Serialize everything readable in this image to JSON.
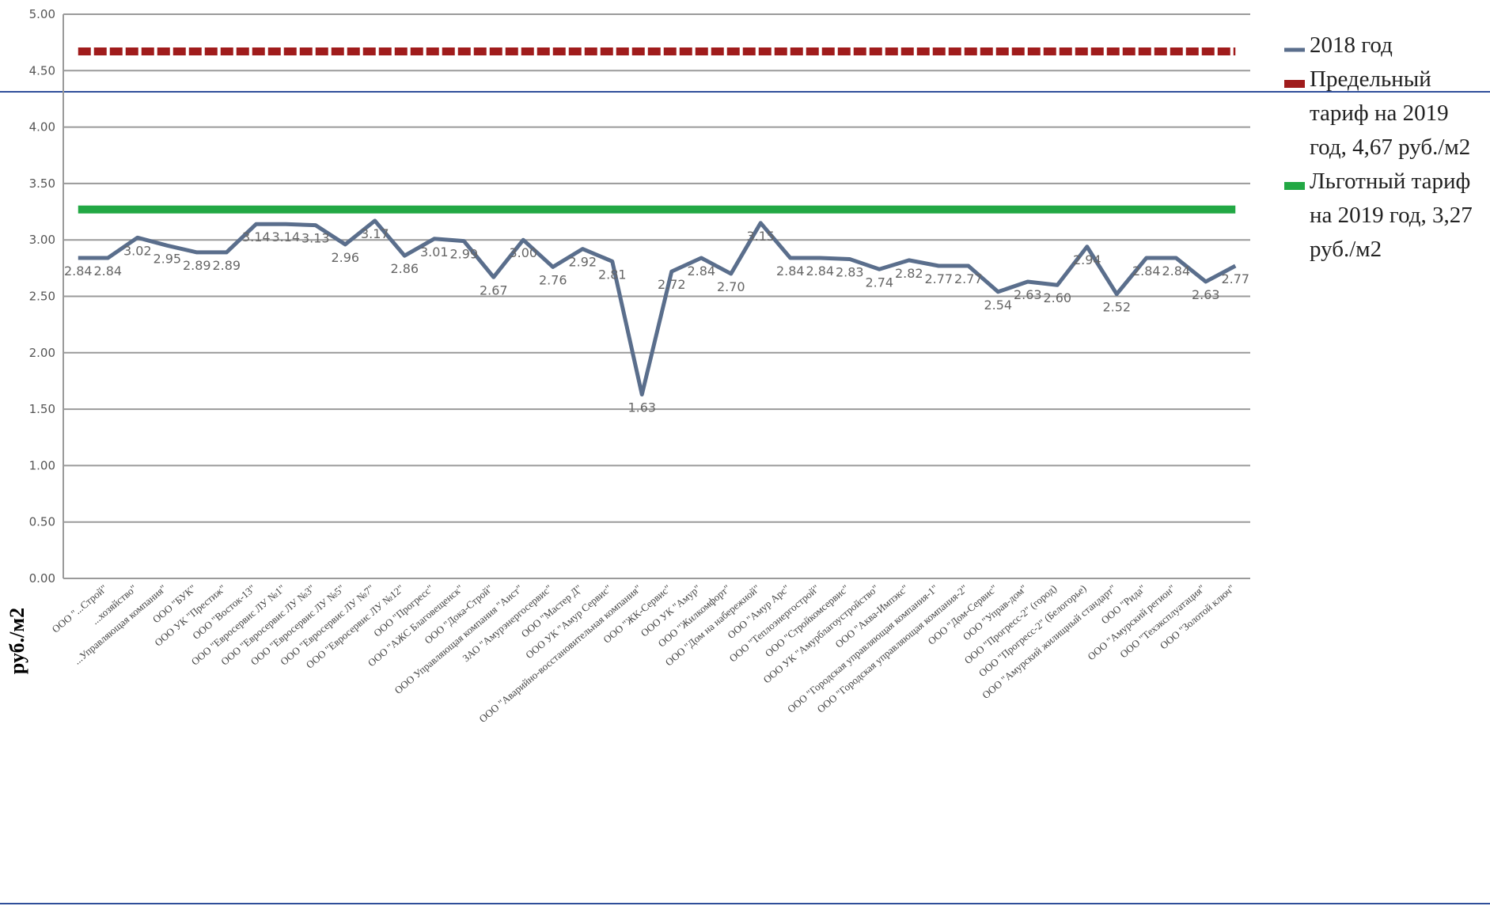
{
  "chart_data": {
    "type": "line",
    "y_label": "руб./м2",
    "categories": [
      null,
      "ООО \"...Строй\"",
      "...хозяйство\"",
      "...Управляющая компания\"",
      "ООО \"БУК\"",
      "ООО УК \"Престиж\"",
      "ООО \"Восток-13\"",
      "ООО \"Евросервис ЛУ №1\"",
      "ООО \"Евросервис ЛУ №3\"",
      "ООО \"Евросервис ЛУ №5\"",
      "ООО \"Евросервис ЛУ №7\"",
      "ООО \"Евросервис ЛУ №12\"",
      "ООО \"Прогресс\"",
      "ООО \"АЖС Благовещенск\"",
      "ООО \"Дока-Строй\"",
      "ООО Управляющая компания \"Аист\"",
      "ЗАО \"Амурэнергосервис\"",
      "ООО \"Мастер Д\"",
      "ООО УК \"Амур Сервис\"",
      "ООО \"Аварийно-восстановительная компания\"",
      "ООО \"ЖК-Сервис\"",
      "ООО УК \"Амур\"",
      "ООО \"Жилкомфорт\"",
      "ООО \"Дом на набережной\"",
      "ООО \"Амур Арс\"",
      "ООО \"Теплоэнергострой\"",
      "ООО \"Стройкомсервис\"",
      "ООО УК \"Амурблагоустройство\"",
      "ООО \"Аква-Импэкс\"",
      "ООО \"Городская управляющая компания-1\"",
      "ООО \"Городская управляющая компания-2\"",
      "ООО \"Дом-Сервис\"",
      "ООО \"Управ-дом\"",
      "ООО \"Прогресс-2\" (город)",
      "ООО \"Прогресс-2\" (Белогорье)",
      "ООО \"Амурский жилищный стандарт\"",
      "ООО \"Рида\"",
      "ООО \"Амурский регион\"",
      "ООО \"Техэксплуатация\"",
      "ООО \"Золотой ключ\""
    ],
    "series": [
      {
        "name": "2018 год",
        "color": "#5a6e8c",
        "values": [
          2.84,
          2.84,
          3.02,
          2.95,
          2.89,
          2.89,
          3.14,
          3.14,
          3.13,
          2.96,
          3.17,
          2.86,
          3.01,
          2.99,
          2.67,
          3.0,
          2.76,
          2.92,
          2.81,
          1.63,
          2.72,
          2.84,
          2.7,
          3.15,
          2.84,
          2.84,
          2.83,
          2.74,
          2.82,
          2.77,
          2.77,
          2.54,
          2.63,
          2.6,
          2.94,
          2.52,
          2.84,
          2.84,
          2.63,
          2.77
        ],
        "value_labels": [
          "2.84",
          "2.84",
          "3.02",
          "2.95",
          "2.89",
          "2.89",
          "3.14",
          "3.14",
          "3.13",
          "2.96",
          "3.17",
          "2.86",
          "3.01",
          "2.99",
          "2.67",
          "3.00",
          "2.76",
          "2.92",
          "2.81",
          "1.63",
          "2.72",
          "2.84",
          "2.70",
          "3.15",
          "2.84",
          "2.84",
          "2.83",
          "2.74",
          "2.82",
          "2.77",
          "2.77",
          "2.54",
          "2.63",
          "2.60",
          "2.94",
          "2.52",
          "2.84",
          "2.84",
          "2.63",
          "2.77"
        ]
      },
      {
        "name": "Предельный тариф на 2019 год, 4,67 руб./м2",
        "color": "#a01c1c",
        "values": [
          4.67,
          4.67,
          4.67,
          4.67,
          4.67,
          4.67,
          4.67,
          4.67,
          4.67,
          4.67,
          4.67,
          4.67,
          4.67,
          4.67,
          4.67,
          4.67,
          4.67,
          4.67,
          4.67,
          4.67,
          4.67,
          4.67,
          4.67,
          4.67,
          4.67,
          4.67,
          4.67,
          4.67,
          4.67,
          4.67,
          4.67,
          4.67,
          4.67,
          4.67,
          4.67,
          4.67,
          4.67,
          4.67,
          4.67,
          4.67
        ]
      },
      {
        "name": "Льготный тариф на 2019 год, 3,27 руб./м2",
        "color": "#22a844",
        "values": [
          3.27,
          3.27,
          3.27,
          3.27,
          3.27,
          3.27,
          3.27,
          3.27,
          3.27,
          3.27,
          3.27,
          3.27,
          3.27,
          3.27,
          3.27,
          3.27,
          3.27,
          3.27,
          3.27,
          3.27,
          3.27,
          3.27,
          3.27,
          3.27,
          3.27,
          3.27,
          3.27,
          3.27,
          3.27,
          3.27,
          3.27,
          3.27,
          3.27,
          3.27,
          3.27,
          3.27,
          3.27,
          3.27,
          3.27,
          3.27
        ]
      }
    ],
    "ylim": [
      0,
      5
    ],
    "yticks": [
      {
        "value": 0,
        "label": "0.00"
      },
      {
        "value": 0.5,
        "label": "0.50"
      },
      {
        "value": 1,
        "label": "1.00"
      },
      {
        "value": 1.5,
        "label": "1.50"
      },
      {
        "value": 2,
        "label": "2.00"
      },
      {
        "value": 2.5,
        "label": "2.50"
      },
      {
        "value": 3,
        "label": "3.00"
      },
      {
        "value": 3.5,
        "label": "3.50"
      },
      {
        "value": 4,
        "label": "4.00"
      },
      {
        "value": 4.5,
        "label": "4.50"
      },
      {
        "value": 5,
        "label": "5.00"
      }
    ],
    "grid": true
  }
}
